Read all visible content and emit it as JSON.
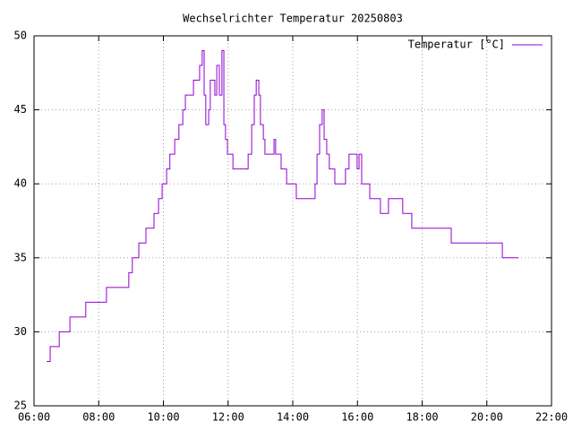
{
  "chart_data": {
    "type": "line",
    "title": "Wechselrichter Temperatur 20250803",
    "x": [
      6.39,
      6.5,
      6.5,
      6.78,
      6.78,
      7.11,
      7.11,
      7.6,
      7.6,
      8.24,
      8.24,
      8.93,
      8.93,
      9.04,
      9.04,
      9.24,
      9.24,
      9.46,
      9.46,
      9.71,
      9.71,
      9.85,
      9.85,
      9.96,
      9.96,
      10.1,
      10.1,
      10.2,
      10.2,
      10.35,
      10.35,
      10.48,
      10.48,
      10.6,
      10.6,
      10.68,
      10.68,
      10.93,
      10.93,
      11.12,
      11.12,
      11.2,
      11.2,
      11.26,
      11.26,
      11.31,
      11.31,
      11.4,
      11.4,
      11.45,
      11.45,
      11.59,
      11.59,
      11.65,
      11.65,
      11.73,
      11.73,
      11.81,
      11.81,
      11.87,
      11.87,
      11.92,
      11.92,
      11.98,
      11.98,
      12.15,
      12.15,
      12.62,
      12.62,
      12.73,
      12.73,
      12.81,
      12.81,
      12.87,
      12.87,
      12.95,
      12.95,
      13.0,
      13.0,
      13.09,
      13.09,
      13.14,
      13.14,
      13.42,
      13.42,
      13.47,
      13.47,
      13.64,
      13.64,
      13.81,
      13.81,
      14.11,
      14.11,
      14.69,
      14.69,
      14.75,
      14.75,
      14.83,
      14.83,
      14.91,
      14.91,
      14.97,
      14.97,
      15.05,
      15.05,
      15.13,
      15.13,
      15.3,
      15.3,
      15.63,
      15.63,
      15.74,
      15.74,
      15.99,
      15.99,
      16.05,
      16.05,
      16.13,
      16.13,
      16.38,
      16.38,
      16.71,
      16.71,
      16.96,
      16.96,
      17.4,
      17.4,
      17.68,
      17.68,
      18.9,
      18.9,
      20.48,
      20.48,
      20.98
    ],
    "series": [
      {
        "name": "Temperatur [°C]",
        "color": "#9400d3",
        "values": [
          28,
          28,
          29,
          29,
          30,
          30,
          31,
          31,
          32,
          32,
          33,
          33,
          34,
          34,
          35,
          35,
          36,
          36,
          37,
          37,
          38,
          38,
          39,
          39,
          40,
          40,
          41,
          41,
          42,
          42,
          43,
          43,
          44,
          44,
          45,
          45,
          46,
          46,
          47,
          47,
          48,
          48,
          49,
          49,
          46,
          46,
          44,
          44,
          45,
          45,
          47,
          47,
          46,
          46,
          48,
          48,
          46,
          46,
          49,
          49,
          44,
          44,
          43,
          43,
          42,
          42,
          41,
          41,
          42,
          42,
          44,
          44,
          46,
          46,
          47,
          47,
          46,
          46,
          44,
          44,
          43,
          43,
          42,
          42,
          43,
          43,
          42,
          42,
          41,
          41,
          40,
          40,
          39,
          39,
          40,
          40,
          42,
          42,
          44,
          44,
          45,
          45,
          43,
          43,
          42,
          42,
          41,
          41,
          40,
          40,
          41,
          41,
          42,
          42,
          41,
          41,
          42,
          42,
          40,
          40,
          39,
          39,
          38,
          38,
          39,
          39,
          38,
          38,
          37,
          37,
          36,
          36,
          35,
          35
        ]
      }
    ],
    "xlim": [
      6,
      22
    ],
    "xticks": [
      {
        "value": 6,
        "label": "06:00"
      },
      {
        "value": 8,
        "label": "08:00"
      },
      {
        "value": 10,
        "label": "10:00"
      },
      {
        "value": 12,
        "label": "12:00"
      },
      {
        "value": 14,
        "label": "14:00"
      },
      {
        "value": 16,
        "label": "16:00"
      },
      {
        "value": 18,
        "label": "18:00"
      },
      {
        "value": 20,
        "label": "20:00"
      },
      {
        "value": 22,
        "label": "22:00"
      }
    ],
    "ylim": [
      25,
      50
    ],
    "yticks": [
      25,
      30,
      35,
      40,
      45,
      50
    ],
    "grid": true,
    "legend": "top-right"
  }
}
